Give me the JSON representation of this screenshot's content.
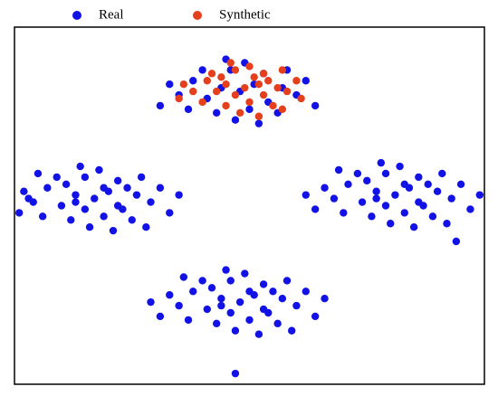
{
  "chart_data": {
    "type": "scatter",
    "legend": "top",
    "xlim": [
      0,
      100
    ],
    "ylim": [
      0,
      100
    ],
    "series": [
      {
        "name": "Real",
        "color": "#1212e6",
        "x": [
          17,
          20,
          13,
          23,
          10,
          19,
          15,
          26,
          7,
          22,
          12,
          29,
          4,
          18,
          16,
          25,
          9,
          31,
          2,
          21,
          14,
          27,
          6,
          33,
          1,
          24,
          11,
          19,
          15,
          28,
          5,
          35,
          3,
          22,
          13,
          81,
          84,
          77,
          87,
          74,
          83,
          79,
          90,
          71,
          86,
          76,
          93,
          68,
          82,
          80,
          89,
          73,
          95,
          66,
          85,
          78,
          91,
          70,
          97,
          64,
          88,
          75,
          83,
          79,
          92,
          69,
          99,
          62,
          86,
          77,
          94,
          48,
          51,
          44,
          54,
          41,
          50,
          46,
          57,
          38,
          53,
          43,
          60,
          35,
          49,
          47,
          56,
          40,
          62,
          33,
          52,
          45,
          58,
          37,
          64,
          31,
          55,
          42,
          50,
          46,
          59,
          36,
          66,
          29,
          53,
          44,
          47,
          48,
          51,
          44,
          54,
          41,
          50,
          46,
          57,
          38,
          53,
          43,
          60,
          35,
          49,
          47,
          56,
          40,
          62,
          33,
          52,
          45,
          58,
          37,
          64,
          31
        ],
        "values": [
          52,
          54,
          53,
          49,
          50,
          47,
          58,
          53,
          55,
          57,
          46,
          51,
          51,
          60,
          44,
          46,
          58,
          55,
          54,
          43,
          61,
          58,
          47,
          48,
          48,
          55,
          56,
          55,
          49,
          44,
          59,
          53,
          52,
          50,
          51,
          53,
          55,
          54,
          50,
          51,
          48,
          59,
          54,
          56,
          58,
          47,
          52,
          52,
          61,
          45,
          47,
          59,
          56,
          55,
          44,
          62,
          59,
          48,
          49,
          49,
          56,
          57,
          56,
          50,
          45,
          60,
          53,
          53,
          51,
          52,
          40,
          23,
          25,
          24,
          20,
          21,
          18,
          29,
          24,
          26,
          28,
          17,
          22,
          22,
          31,
          15,
          17,
          29,
          26,
          25,
          14,
          32,
          29,
          18,
          19,
          19,
          26,
          27,
          26,
          20,
          15,
          30,
          24,
          23,
          21,
          22,
          3,
          82,
          84,
          83,
          79,
          80,
          77,
          88,
          83,
          85,
          87,
          76,
          81,
          81,
          90,
          74,
          76,
          88,
          85,
          84,
          73,
          91,
          88,
          77,
          78,
          78
        ]
      },
      {
        "name": "Synthetic",
        "color": "#e5401e",
        "x": [
          49,
          52,
          45,
          53,
          43,
          50,
          47,
          56,
          41,
          53,
          45,
          58,
          38,
          50,
          48,
          55,
          42,
          60,
          36,
          52,
          46,
          57,
          40,
          61,
          35,
          54,
          44,
          51,
          47,
          57
        ],
        "values": [
          83,
          84,
          84,
          81,
          82,
          79,
          88,
          83,
          85,
          87,
          78,
          82,
          82,
          89,
          76,
          78,
          87,
          85,
          84,
          75,
          90,
          88,
          79,
          80,
          80,
          85,
          86,
          86,
          81,
          77
        ]
      }
    ]
  }
}
